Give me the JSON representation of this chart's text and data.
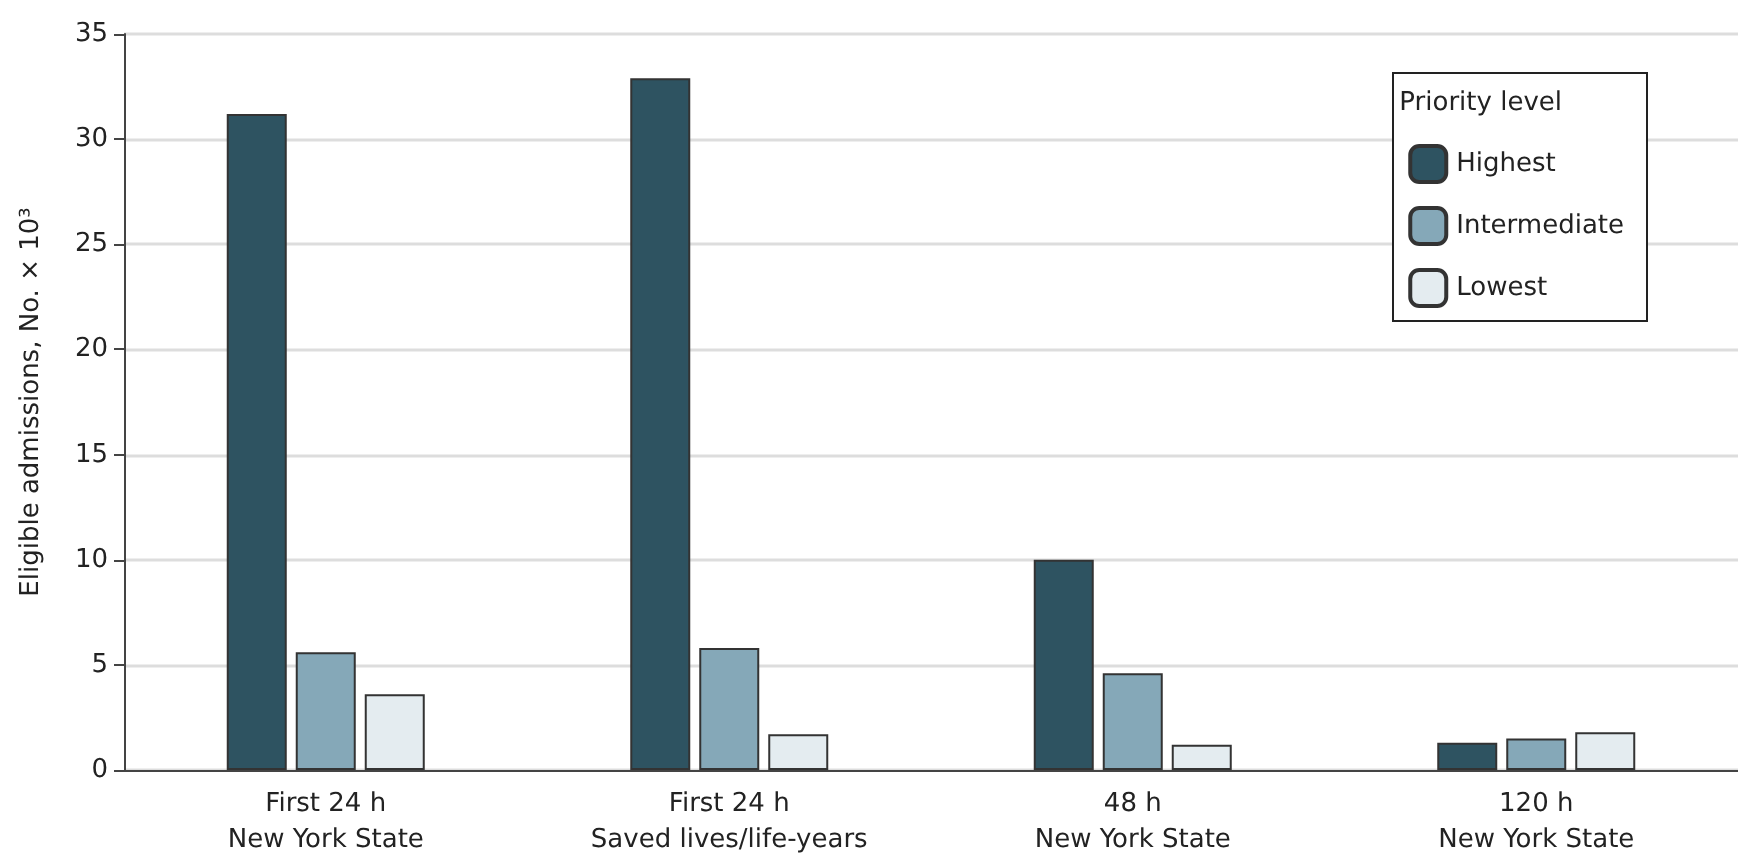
{
  "chart_data": {
    "type": "bar",
    "ylabel": "Eligible admissions, No. × 10³",
    "legend_title": "Priority level",
    "categories": [
      "First 24 h\nNew York State",
      "First 24 h\nSaved lives/life-years",
      "48 h\nNew York State",
      "120 h\nNew York State"
    ],
    "series": [
      {
        "name": "Highest",
        "color": "#2e5361",
        "values": [
          31.2,
          32.9,
          10.0,
          1.3
        ]
      },
      {
        "name": "Intermediate",
        "color": "#85a8b8",
        "values": [
          5.6,
          5.8,
          4.6,
          1.5
        ]
      },
      {
        "name": "Lowest",
        "color": "#e4ecf0",
        "values": [
          3.6,
          1.7,
          1.2,
          1.8
        ]
      }
    ],
    "ylim": [
      0,
      35
    ],
    "yticks": [
      0,
      5,
      10,
      15,
      20,
      25,
      30,
      35
    ],
    "grid": "y",
    "legend": "top right"
  }
}
